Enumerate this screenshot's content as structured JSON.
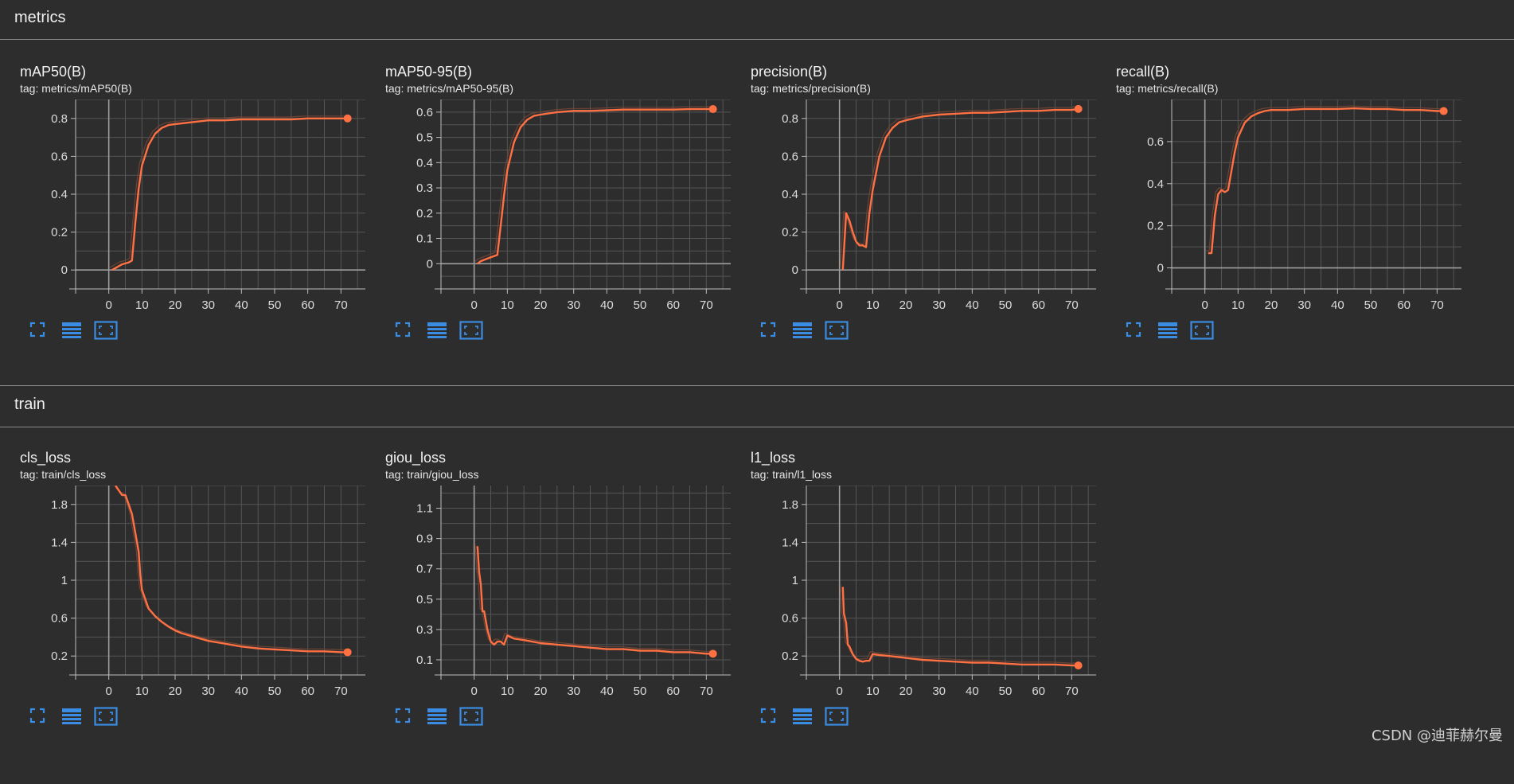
{
  "sections": {
    "metrics": {
      "title": "metrics"
    },
    "train": {
      "title": "train"
    }
  },
  "cards": [
    {
      "title": "mAP50(B)",
      "tag": "tag: metrics/mAP50(B)"
    },
    {
      "title": "mAP50-95(B)",
      "tag": "tag: metrics/mAP50-95(B)"
    },
    {
      "title": "precision(B)",
      "tag": "tag: metrics/precision(B)"
    },
    {
      "title": "recall(B)",
      "tag": "tag: metrics/recall(B)"
    },
    {
      "title": "cls_loss",
      "tag": "tag: train/cls_loss"
    },
    {
      "title": "giou_loss",
      "tag": "tag: train/giou_loss"
    },
    {
      "title": "l1_loss",
      "tag": "tag: train/l1_loss"
    }
  ],
  "toolbar_icons": [
    "expand-icon",
    "data-table-icon",
    "fit-domain-icon"
  ],
  "colors": {
    "line": "#ff7043",
    "raw_line": "#6b4436",
    "background": "#2d2d2d",
    "grid": "#5a5a5a",
    "axis": "#9e9e9e"
  },
  "watermark": "CSDN @迪菲赫尔曼",
  "chart_data": [
    {
      "type": "line",
      "title": "mAP50(B)",
      "xlim": [
        -10,
        80
      ],
      "ylim": [
        -0.1,
        0.9
      ],
      "xticks": [
        0,
        10,
        20,
        30,
        40,
        50,
        60,
        70
      ],
      "yticks": [
        0,
        0.2,
        0.4,
        0.6,
        0.8
      ],
      "ytick_labels": [
        "0",
        "0.2",
        "0.4",
        "0.6",
        "0.8"
      ],
      "x": [
        1,
        2,
        3,
        4,
        5,
        6,
        7,
        8,
        9,
        10,
        12,
        14,
        16,
        18,
        20,
        25,
        30,
        35,
        40,
        45,
        50,
        55,
        60,
        65,
        70,
        72
      ],
      "y": [
        0.0,
        0.01,
        0.02,
        0.03,
        0.035,
        0.04,
        0.05,
        0.25,
        0.43,
        0.55,
        0.66,
        0.72,
        0.75,
        0.765,
        0.77,
        0.78,
        0.79,
        0.79,
        0.795,
        0.795,
        0.795,
        0.795,
        0.8,
        0.8,
        0.8,
        0.8
      ]
    },
    {
      "type": "line",
      "title": "mAP50-95(B)",
      "xlim": [
        -10,
        80
      ],
      "ylim": [
        -0.1,
        0.65
      ],
      "xticks": [
        0,
        10,
        20,
        30,
        40,
        50,
        60,
        70
      ],
      "yticks": [
        0,
        0.1,
        0.2,
        0.3,
        0.4,
        0.5,
        0.6
      ],
      "ytick_labels": [
        "0",
        "0.1",
        "0.2",
        "0.3",
        "0.4",
        "0.5",
        "0.6"
      ],
      "x": [
        1,
        2,
        3,
        4,
        5,
        6,
        7,
        8,
        9,
        10,
        12,
        14,
        16,
        18,
        20,
        25,
        30,
        35,
        40,
        45,
        50,
        55,
        60,
        65,
        70,
        72
      ],
      "y": [
        0.0,
        0.01,
        0.015,
        0.02,
        0.025,
        0.03,
        0.035,
        0.15,
        0.27,
        0.37,
        0.48,
        0.54,
        0.57,
        0.585,
        0.59,
        0.6,
        0.605,
        0.605,
        0.607,
        0.61,
        0.61,
        0.61,
        0.61,
        0.612,
        0.612,
        0.612
      ]
    },
    {
      "type": "line",
      "title": "precision(B)",
      "xlim": [
        -10,
        80
      ],
      "ylim": [
        -0.1,
        0.9
      ],
      "xticks": [
        0,
        10,
        20,
        30,
        40,
        50,
        60,
        70
      ],
      "yticks": [
        0,
        0.2,
        0.4,
        0.6,
        0.8
      ],
      "ytick_labels": [
        "0",
        "0.2",
        "0.4",
        "0.6",
        "0.8"
      ],
      "x": [
        1,
        2,
        3,
        4,
        5,
        6,
        7,
        8,
        9,
        10,
        12,
        14,
        16,
        18,
        20,
        25,
        30,
        35,
        40,
        45,
        50,
        55,
        60,
        65,
        70,
        72
      ],
      "y": [
        0.0,
        0.3,
        0.26,
        0.2,
        0.15,
        0.13,
        0.13,
        0.12,
        0.3,
        0.42,
        0.6,
        0.7,
        0.75,
        0.78,
        0.79,
        0.81,
        0.82,
        0.825,
        0.83,
        0.83,
        0.835,
        0.84,
        0.84,
        0.845,
        0.845,
        0.85
      ]
    },
    {
      "type": "line",
      "title": "recall(B)",
      "xlim": [
        -10,
        80
      ],
      "ylim": [
        -0.1,
        0.8
      ],
      "xticks": [
        0,
        10,
        20,
        30,
        40,
        50,
        60,
        70
      ],
      "yticks": [
        0,
        0.2,
        0.4,
        0.6
      ],
      "ytick_labels": [
        "0",
        "0.2",
        "0.4",
        "0.6"
      ],
      "x": [
        1,
        2,
        3,
        4,
        5,
        6,
        7,
        8,
        9,
        10,
        12,
        14,
        16,
        18,
        20,
        25,
        30,
        35,
        40,
        45,
        50,
        55,
        60,
        65,
        70,
        72
      ],
      "y": [
        0.07,
        0.07,
        0.25,
        0.35,
        0.37,
        0.36,
        0.37,
        0.46,
        0.55,
        0.62,
        0.69,
        0.72,
        0.735,
        0.745,
        0.75,
        0.75,
        0.755,
        0.755,
        0.755,
        0.758,
        0.755,
        0.755,
        0.75,
        0.75,
        0.745,
        0.745
      ]
    },
    {
      "type": "line",
      "title": "cls_loss",
      "xlim": [
        -10,
        80
      ],
      "ylim": [
        0,
        2.0
      ],
      "xticks": [
        0,
        10,
        20,
        30,
        40,
        50,
        60,
        70
      ],
      "yticks": [
        0.2,
        0.6,
        1,
        1.4,
        1.8
      ],
      "ytick_labels": [
        "0.2",
        "0.6",
        "1",
        "1.4",
        "1.8"
      ],
      "x": [
        2,
        3,
        4,
        5,
        6,
        7,
        8,
        9,
        9.5,
        10,
        11,
        12,
        14,
        16,
        18,
        20,
        22,
        25,
        28,
        30,
        35,
        40,
        45,
        50,
        55,
        60,
        65,
        70,
        72
      ],
      "y": [
        2.0,
        1.95,
        1.9,
        1.9,
        1.8,
        1.7,
        1.5,
        1.3,
        1.05,
        0.9,
        0.8,
        0.7,
        0.62,
        0.56,
        0.51,
        0.47,
        0.44,
        0.41,
        0.38,
        0.36,
        0.33,
        0.3,
        0.28,
        0.27,
        0.26,
        0.25,
        0.25,
        0.24,
        0.24
      ]
    },
    {
      "type": "line",
      "title": "giou_loss",
      "xlim": [
        -10,
        80
      ],
      "ylim": [
        0,
        1.25
      ],
      "xticks": [
        0,
        10,
        20,
        30,
        40,
        50,
        60,
        70
      ],
      "yticks": [
        0.1,
        0.3,
        0.5,
        0.7,
        0.9,
        1.1
      ],
      "ytick_labels": [
        "0.1",
        "0.3",
        "0.5",
        "0.7",
        "0.9",
        "1.1"
      ],
      "x": [
        1,
        1.5,
        2,
        2.5,
        3,
        4,
        5,
        6,
        7,
        8,
        9,
        10,
        12,
        15,
        20,
        25,
        30,
        35,
        40,
        45,
        50,
        55,
        60,
        65,
        70,
        72
      ],
      "y": [
        0.85,
        0.68,
        0.6,
        0.42,
        0.42,
        0.3,
        0.22,
        0.2,
        0.22,
        0.22,
        0.2,
        0.26,
        0.24,
        0.23,
        0.21,
        0.2,
        0.19,
        0.18,
        0.17,
        0.17,
        0.16,
        0.16,
        0.15,
        0.15,
        0.14,
        0.14
      ]
    },
    {
      "type": "line",
      "title": "l1_loss",
      "xlim": [
        -10,
        80
      ],
      "ylim": [
        0,
        2.0
      ],
      "xticks": [
        0,
        10,
        20,
        30,
        40,
        50,
        60,
        70
      ],
      "yticks": [
        0.2,
        0.6,
        1,
        1.4,
        1.8
      ],
      "ytick_labels": [
        "0.2",
        "0.6",
        "1",
        "1.4",
        "1.8"
      ],
      "x": [
        1,
        1.3,
        2,
        2.5,
        3,
        4,
        5,
        6,
        7,
        8,
        9,
        10,
        12,
        15,
        20,
        25,
        30,
        35,
        40,
        45,
        50,
        55,
        60,
        65,
        70,
        72
      ],
      "y": [
        0.93,
        0.65,
        0.55,
        0.32,
        0.3,
        0.22,
        0.17,
        0.15,
        0.14,
        0.15,
        0.15,
        0.22,
        0.21,
        0.2,
        0.18,
        0.16,
        0.15,
        0.14,
        0.13,
        0.13,
        0.12,
        0.11,
        0.11,
        0.11,
        0.1,
        0.1
      ]
    }
  ]
}
